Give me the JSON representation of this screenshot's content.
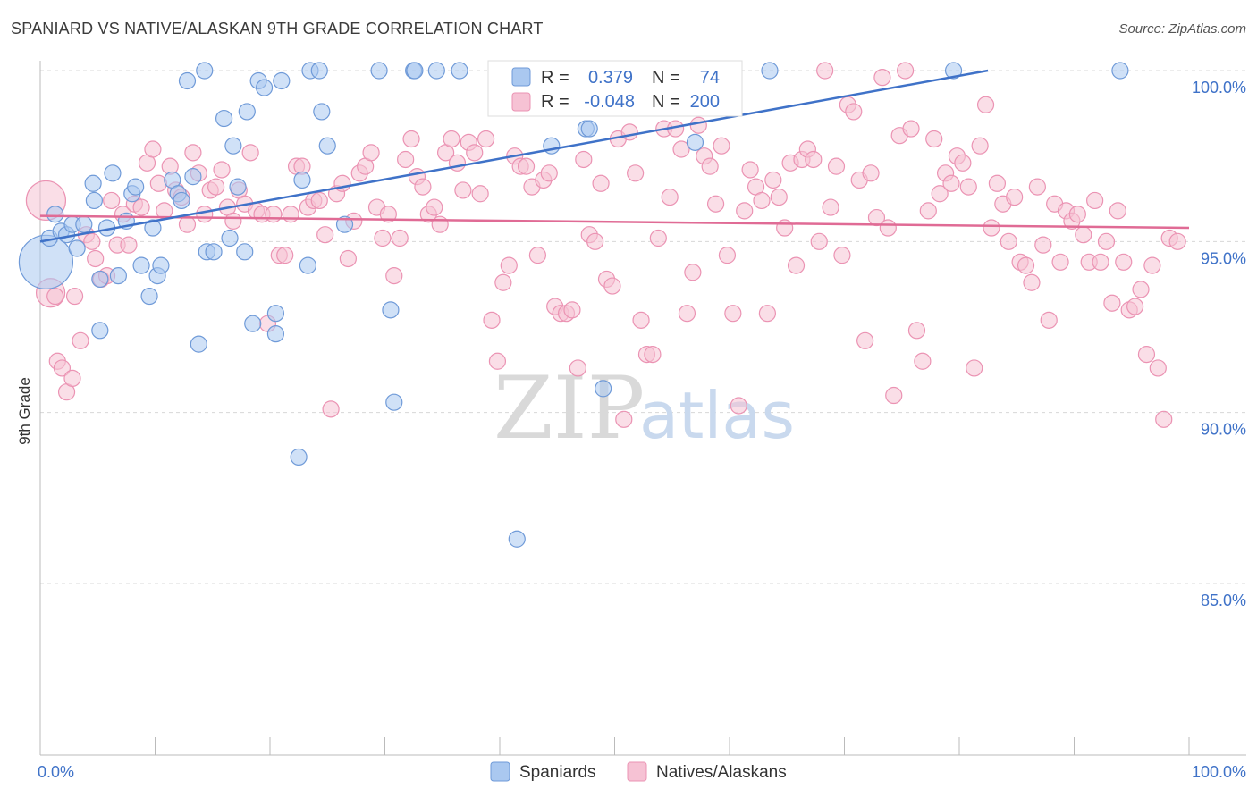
{
  "title": "SPANIARD VS NATIVE/ALASKAN 9TH GRADE CORRELATION CHART",
  "source": "Source: ZipAtlas.com",
  "watermark": {
    "zip": "ZIP",
    "atlas": "atlas"
  },
  "colors": {
    "blue": "#3f72c8",
    "blue_fill": "#aac8f0",
    "blue_stroke": "#6f9ad8",
    "pink": "#e06b95",
    "pink_fill": "#f6c2d4",
    "pink_stroke": "#eb93b3",
    "grid": "#d8d8d8",
    "axis": "#bbbbbb"
  },
  "legend_stats": {
    "r_label": "R =",
    "n_label": "N =",
    "spaniards": {
      "r": "0.379",
      "n": "74"
    },
    "natives": {
      "r": "-0.048",
      "n": "200"
    }
  },
  "legend": {
    "spaniards": "Spaniards",
    "natives": "Natives/Alaskans"
  },
  "chart_data": {
    "type": "scatter",
    "title": "SPANIARD VS NATIVE/ALASKAN 9TH GRADE CORRELATION CHART",
    "xlabel": "",
    "ylabel": "9th Grade",
    "xlim": [
      0,
      100
    ],
    "ylim": [
      80.5,
      100.5
    ],
    "x_tick_labels": [
      "0.0%",
      "100.0%"
    ],
    "y_ticks": [
      100,
      95,
      90,
      85
    ],
    "y_tick_labels": [
      "100.0%",
      "95.0%",
      "90.0%",
      "85.0%"
    ],
    "grid": true,
    "legend_position": "bottom-center",
    "series": [
      {
        "name": "Spaniards",
        "trend": {
          "x": [
            0,
            82.5
          ],
          "y": [
            95.0,
            100.0
          ]
        },
        "points": [
          [
            0.5,
            94.4
          ],
          [
            0.8,
            95.1
          ],
          [
            1.3,
            95.8
          ],
          [
            1.8,
            95.3
          ],
          [
            2.3,
            95.2
          ],
          [
            2.8,
            95.5
          ],
          [
            3.2,
            94.8
          ],
          [
            3.8,
            95.5
          ],
          [
            4.6,
            96.7
          ],
          [
            4.7,
            96.2
          ],
          [
            5.2,
            93.9
          ],
          [
            5.2,
            92.4
          ],
          [
            5.8,
            95.4
          ],
          [
            6.3,
            97.0
          ],
          [
            6.8,
            94.0
          ],
          [
            7.5,
            95.6
          ],
          [
            8.0,
            96.4
          ],
          [
            8.3,
            96.6
          ],
          [
            8.8,
            94.3
          ],
          [
            9.5,
            93.4
          ],
          [
            9.8,
            95.4
          ],
          [
            10.2,
            94.0
          ],
          [
            10.5,
            94.3
          ],
          [
            11.5,
            96.8
          ],
          [
            12.0,
            96.4
          ],
          [
            12.3,
            96.2
          ],
          [
            12.8,
            99.7
          ],
          [
            13.3,
            96.9
          ],
          [
            13.8,
            92.0
          ],
          [
            14.3,
            100.0
          ],
          [
            14.5,
            94.7
          ],
          [
            15.1,
            94.7
          ],
          [
            16.0,
            98.6
          ],
          [
            16.5,
            95.1
          ],
          [
            16.8,
            97.8
          ],
          [
            17.2,
            96.6
          ],
          [
            17.8,
            94.7
          ],
          [
            18.0,
            98.8
          ],
          [
            18.5,
            92.6
          ],
          [
            19.0,
            99.7
          ],
          [
            19.5,
            99.5
          ],
          [
            20.5,
            92.9
          ],
          [
            20.5,
            92.3
          ],
          [
            21.0,
            99.7
          ],
          [
            22.5,
            88.7
          ],
          [
            22.8,
            96.8
          ],
          [
            23.3,
            94.3
          ],
          [
            23.5,
            100.0
          ],
          [
            24.3,
            100.0
          ],
          [
            24.5,
            98.8
          ],
          [
            25.0,
            97.8
          ],
          [
            26.5,
            95.5
          ],
          [
            29.5,
            100.0
          ],
          [
            30.5,
            93.0
          ],
          [
            30.8,
            90.3
          ],
          [
            32.5,
            100.0
          ],
          [
            32.6,
            100.0
          ],
          [
            34.5,
            100.0
          ],
          [
            36.5,
            100.0
          ],
          [
            40.5,
            100.0
          ],
          [
            41.5,
            86.3
          ],
          [
            44.0,
            100.0
          ],
          [
            44.5,
            97.8
          ],
          [
            47.5,
            98.3
          ],
          [
            47.8,
            98.3
          ],
          [
            49.0,
            90.7
          ],
          [
            51.5,
            100.0
          ],
          [
            52.5,
            100.0
          ],
          [
            56.5,
            100.0
          ],
          [
            57.0,
            97.9
          ],
          [
            60.0,
            100.0
          ],
          [
            63.5,
            100.0
          ],
          [
            79.5,
            100.0
          ],
          [
            94.0,
            100.0
          ]
        ],
        "sizes": {
          "0": 30
        }
      },
      {
        "name": "Natives/Alaskans",
        "trend": {
          "x": [
            0,
            100
          ],
          "y": [
            95.75,
            95.4
          ]
        },
        "points": [
          [
            0.5,
            96.2
          ],
          [
            0.9,
            93.5
          ],
          [
            1.3,
            93.4
          ],
          [
            1.5,
            91.5
          ],
          [
            1.9,
            91.3
          ],
          [
            2.3,
            90.6
          ],
          [
            2.8,
            91.0
          ],
          [
            3.0,
            93.4
          ],
          [
            3.5,
            92.1
          ],
          [
            4.0,
            95.2
          ],
          [
            4.5,
            95.0
          ],
          [
            4.8,
            94.5
          ],
          [
            5.3,
            93.9
          ],
          [
            5.8,
            94.0
          ],
          [
            6.2,
            96.2
          ],
          [
            6.7,
            94.9
          ],
          [
            7.2,
            95.8
          ],
          [
            7.7,
            94.9
          ],
          [
            8.2,
            96.1
          ],
          [
            8.8,
            96.0
          ],
          [
            9.3,
            97.3
          ],
          [
            9.8,
            97.7
          ],
          [
            10.3,
            96.7
          ],
          [
            10.8,
            95.9
          ],
          [
            11.3,
            97.2
          ],
          [
            11.8,
            96.5
          ],
          [
            12.3,
            96.3
          ],
          [
            12.8,
            95.5
          ],
          [
            13.3,
            97.6
          ],
          [
            13.8,
            97.0
          ],
          [
            14.3,
            95.8
          ],
          [
            14.8,
            96.5
          ],
          [
            15.3,
            96.6
          ],
          [
            15.8,
            97.1
          ],
          [
            16.3,
            96.0
          ],
          [
            16.8,
            95.6
          ],
          [
            17.3,
            96.5
          ],
          [
            17.8,
            96.1
          ],
          [
            18.3,
            97.6
          ],
          [
            18.8,
            95.9
          ],
          [
            19.3,
            95.8
          ],
          [
            19.8,
            92.6
          ],
          [
            20.3,
            95.8
          ],
          [
            20.8,
            94.6
          ],
          [
            21.3,
            94.6
          ],
          [
            21.8,
            95.8
          ],
          [
            22.3,
            97.2
          ],
          [
            22.8,
            97.2
          ],
          [
            23.3,
            96.0
          ],
          [
            23.8,
            96.2
          ],
          [
            24.3,
            96.2
          ],
          [
            24.8,
            95.2
          ],
          [
            25.3,
            90.1
          ],
          [
            25.8,
            96.4
          ],
          [
            26.3,
            96.7
          ],
          [
            26.8,
            94.5
          ],
          [
            27.3,
            95.6
          ],
          [
            27.8,
            97.0
          ],
          [
            28.3,
            97.2
          ],
          [
            28.8,
            97.6
          ],
          [
            29.3,
            96.0
          ],
          [
            29.8,
            95.1
          ],
          [
            30.3,
            95.8
          ],
          [
            30.8,
            94.0
          ],
          [
            31.3,
            95.1
          ],
          [
            31.8,
            97.4
          ],
          [
            32.3,
            98.0
          ],
          [
            32.8,
            96.9
          ],
          [
            33.3,
            96.6
          ],
          [
            33.8,
            95.8
          ],
          [
            34.3,
            96.0
          ],
          [
            34.8,
            95.5
          ],
          [
            35.3,
            97.6
          ],
          [
            35.8,
            98.0
          ],
          [
            36.3,
            97.3
          ],
          [
            36.8,
            96.5
          ],
          [
            37.3,
            97.9
          ],
          [
            37.8,
            97.6
          ],
          [
            38.3,
            96.4
          ],
          [
            38.8,
            98.0
          ],
          [
            39.3,
            92.7
          ],
          [
            39.8,
            91.5
          ],
          [
            40.3,
            93.8
          ],
          [
            40.8,
            94.3
          ],
          [
            41.3,
            97.5
          ],
          [
            41.8,
            97.2
          ],
          [
            42.3,
            97.2
          ],
          [
            42.8,
            96.6
          ],
          [
            43.3,
            94.6
          ],
          [
            43.8,
            96.8
          ],
          [
            44.3,
            97.0
          ],
          [
            44.8,
            93.1
          ],
          [
            45.3,
            92.9
          ],
          [
            45.8,
            92.9
          ],
          [
            46.3,
            93.0
          ],
          [
            46.8,
            91.3
          ],
          [
            47.3,
            97.4
          ],
          [
            47.8,
            95.2
          ],
          [
            48.3,
            95.0
          ],
          [
            48.8,
            96.7
          ],
          [
            49.3,
            93.9
          ],
          [
            49.8,
            93.7
          ],
          [
            50.3,
            98.0
          ],
          [
            50.8,
            89.8
          ],
          [
            51.3,
            98.2
          ],
          [
            51.8,
            97.0
          ],
          [
            52.3,
            92.7
          ],
          [
            52.8,
            91.7
          ],
          [
            53.3,
            91.7
          ],
          [
            53.8,
            95.1
          ],
          [
            54.3,
            98.3
          ],
          [
            54.8,
            96.3
          ],
          [
            55.3,
            98.3
          ],
          [
            55.8,
            97.7
          ],
          [
            56.3,
            92.9
          ],
          [
            56.8,
            94.1
          ],
          [
            57.3,
            98.4
          ],
          [
            57.8,
            97.5
          ],
          [
            58.3,
            97.2
          ],
          [
            58.8,
            96.1
          ],
          [
            59.3,
            97.8
          ],
          [
            59.8,
            94.6
          ],
          [
            60.3,
            92.9
          ],
          [
            60.8,
            90.2
          ],
          [
            61.3,
            95.9
          ],
          [
            61.8,
            97.1
          ],
          [
            62.3,
            96.6
          ],
          [
            62.8,
            96.2
          ],
          [
            63.3,
            92.9
          ],
          [
            63.8,
            96.8
          ],
          [
            64.3,
            96.3
          ],
          [
            64.8,
            95.4
          ],
          [
            65.3,
            97.3
          ],
          [
            65.8,
            94.3
          ],
          [
            66.3,
            97.4
          ],
          [
            66.8,
            97.7
          ],
          [
            67.3,
            97.4
          ],
          [
            67.8,
            95.0
          ],
          [
            68.3,
            100.0
          ],
          [
            68.8,
            96.0
          ],
          [
            69.3,
            97.2
          ],
          [
            69.8,
            94.6
          ],
          [
            70.3,
            99.0
          ],
          [
            70.8,
            98.8
          ],
          [
            71.3,
            96.8
          ],
          [
            71.8,
            92.1
          ],
          [
            72.3,
            97.0
          ],
          [
            72.8,
            95.7
          ],
          [
            73.3,
            99.8
          ],
          [
            73.8,
            95.4
          ],
          [
            74.3,
            90.5
          ],
          [
            74.8,
            98.1
          ],
          [
            75.3,
            100.0
          ],
          [
            75.8,
            98.3
          ],
          [
            76.3,
            92.4
          ],
          [
            76.8,
            91.5
          ],
          [
            77.3,
            95.9
          ],
          [
            77.8,
            98.0
          ],
          [
            78.3,
            96.4
          ],
          [
            78.8,
            97.0
          ],
          [
            79.3,
            96.7
          ],
          [
            79.8,
            97.5
          ],
          [
            80.3,
            97.3
          ],
          [
            80.8,
            96.6
          ],
          [
            81.3,
            91.3
          ],
          [
            81.8,
            97.8
          ],
          [
            82.3,
            99.0
          ],
          [
            82.8,
            95.4
          ],
          [
            83.3,
            96.7
          ],
          [
            83.8,
            96.1
          ],
          [
            84.3,
            95.0
          ],
          [
            84.8,
            96.3
          ],
          [
            85.3,
            94.4
          ],
          [
            85.8,
            94.3
          ],
          [
            86.3,
            93.8
          ],
          [
            86.8,
            96.6
          ],
          [
            87.3,
            94.9
          ],
          [
            87.8,
            92.7
          ],
          [
            88.3,
            96.1
          ],
          [
            88.8,
            94.4
          ],
          [
            89.3,
            95.9
          ],
          [
            89.8,
            95.6
          ],
          [
            90.3,
            95.8
          ],
          [
            90.8,
            95.2
          ],
          [
            91.3,
            94.4
          ],
          [
            91.8,
            96.2
          ],
          [
            92.3,
            94.4
          ],
          [
            92.8,
            95.0
          ],
          [
            93.3,
            93.2
          ],
          [
            93.8,
            95.9
          ],
          [
            94.3,
            94.4
          ],
          [
            94.8,
            93.0
          ],
          [
            95.3,
            93.1
          ],
          [
            95.8,
            93.6
          ],
          [
            96.3,
            91.7
          ],
          [
            96.8,
            94.3
          ],
          [
            97.3,
            91.3
          ],
          [
            97.8,
            89.8
          ],
          [
            98.3,
            95.1
          ],
          [
            99.0,
            95.0
          ]
        ],
        "sizes": {
          "0": 22,
          "1": 16
        }
      }
    ]
  }
}
